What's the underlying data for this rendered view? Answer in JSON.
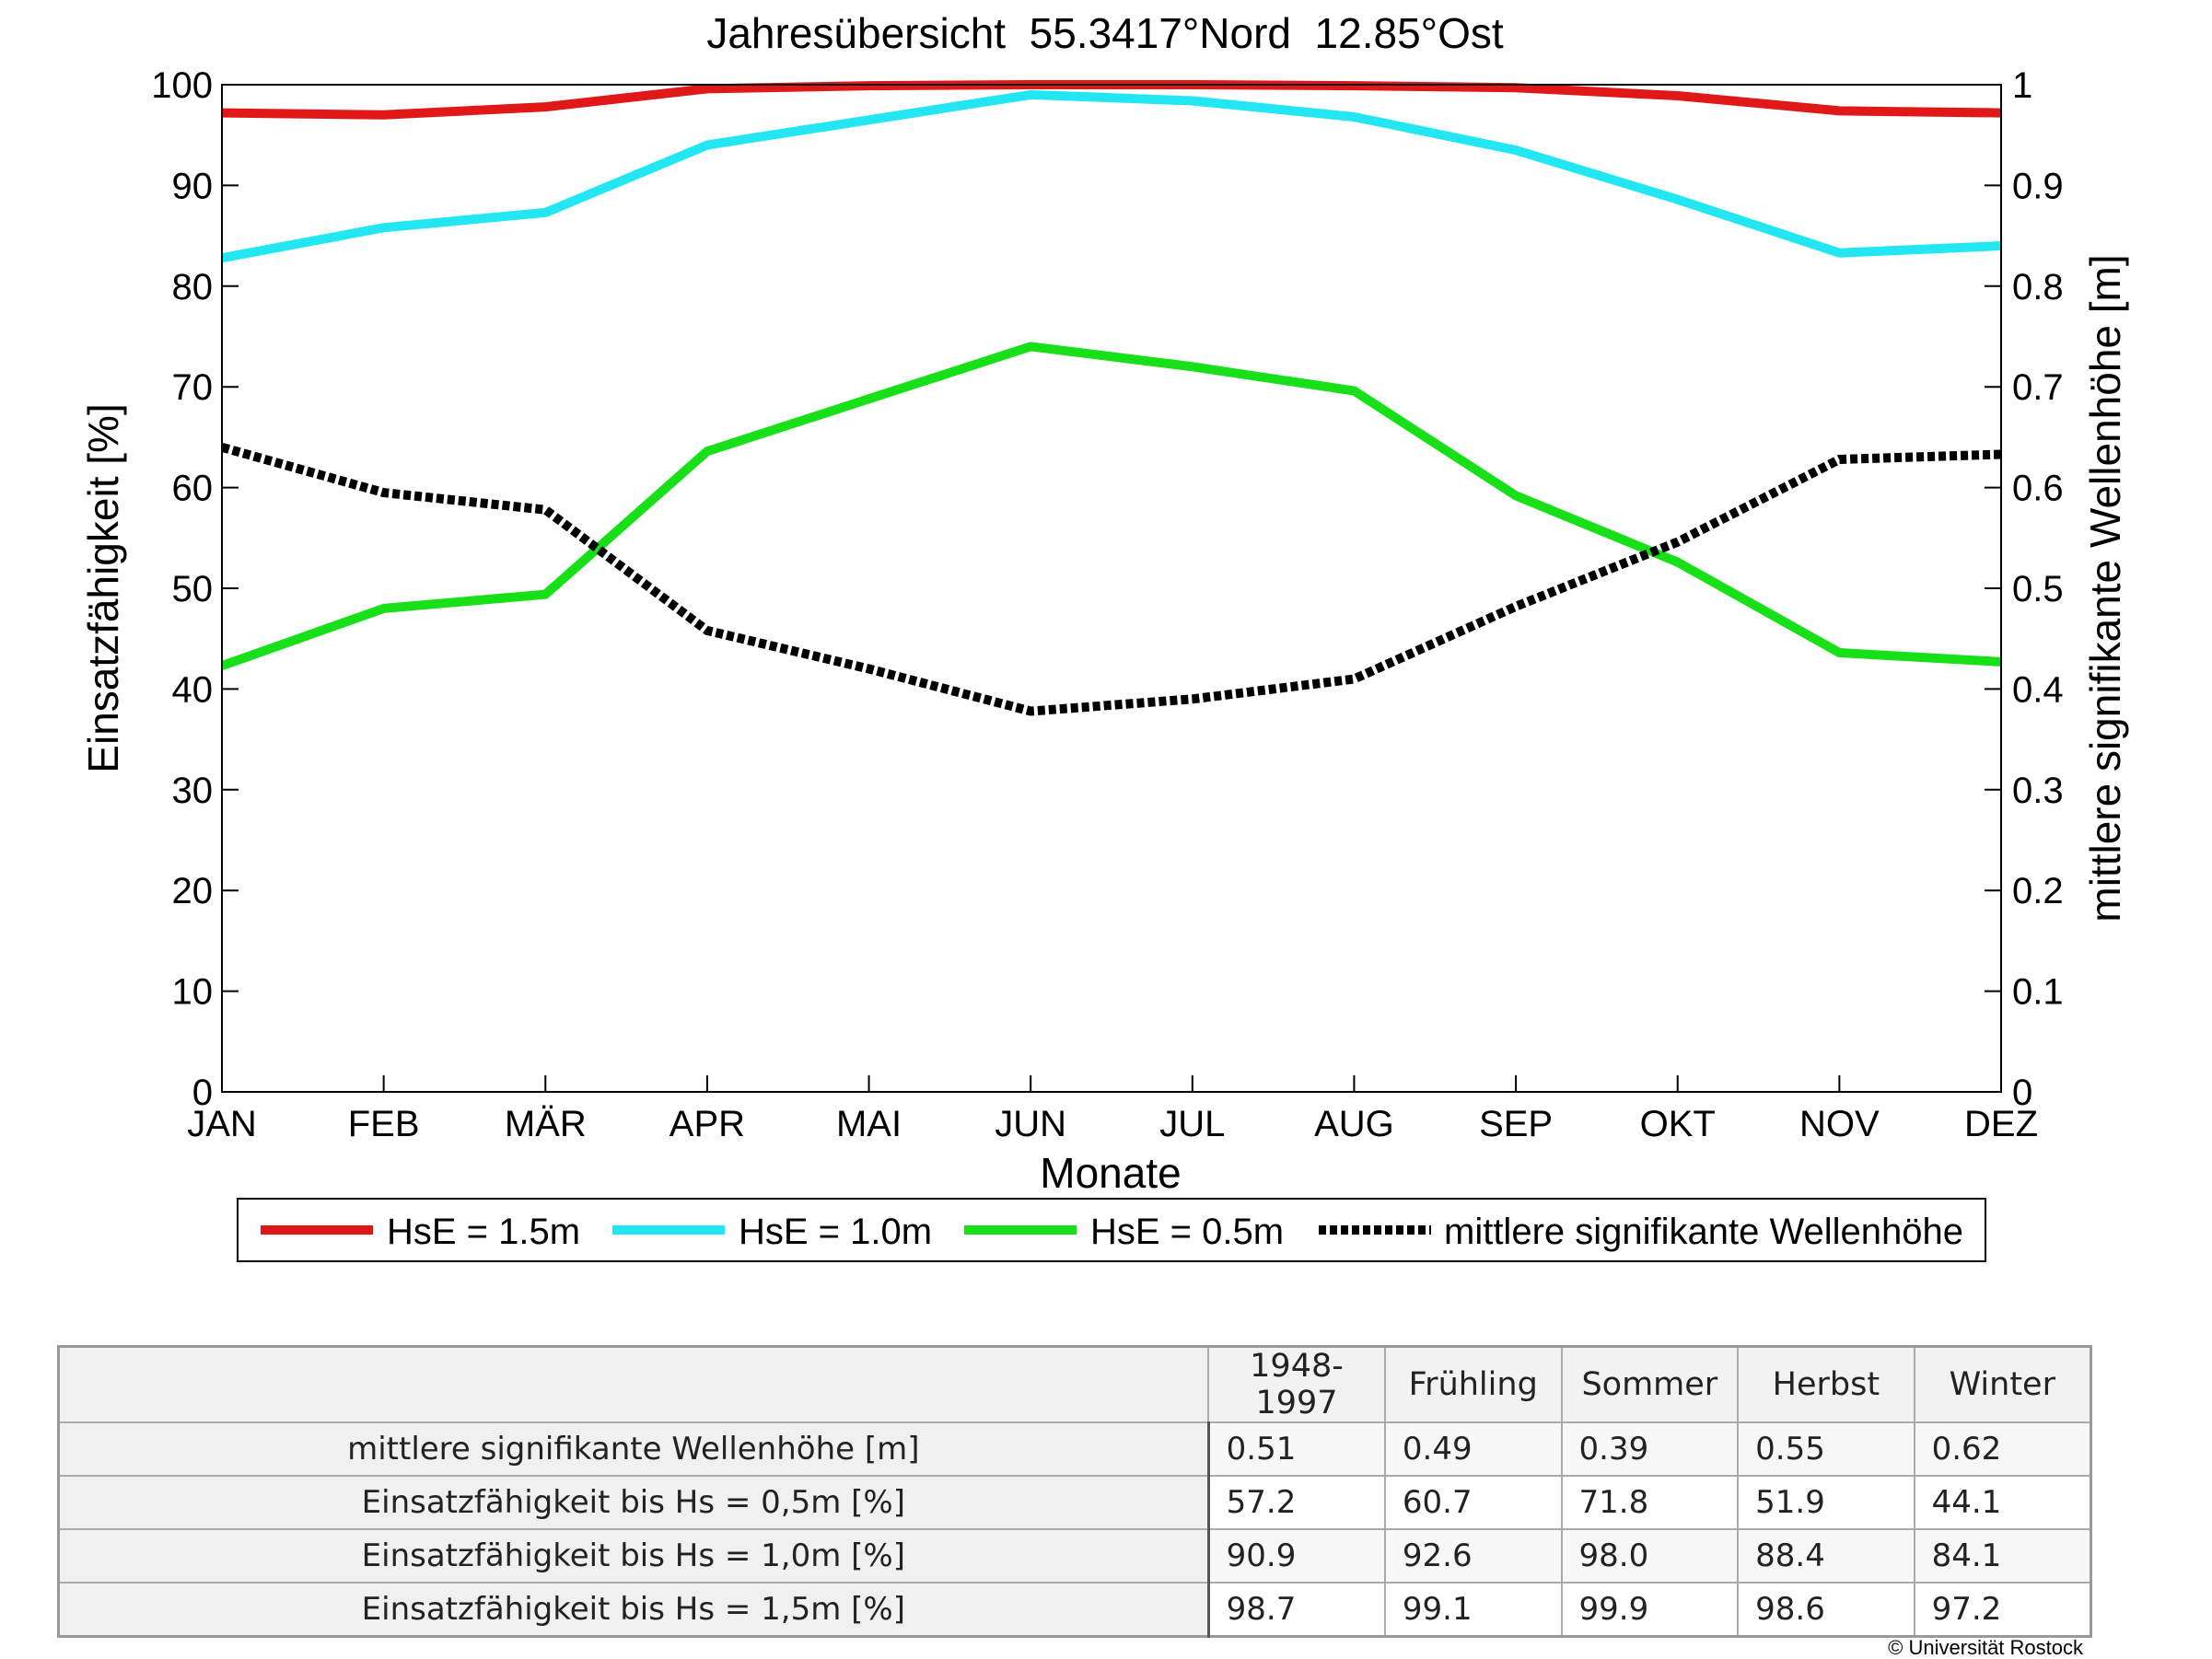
{
  "chart_data": {
    "type": "line",
    "title": "Jahresübersicht  55.3417°Nord  12.85°Ost",
    "xlabel": "Monate",
    "ylabel": "Einsatzfähigkeit [%]",
    "y2label": "mittlere signifikante Wellenhöhe [m]",
    "categories": [
      "JAN",
      "FEB",
      "MÄR",
      "APR",
      "MAI",
      "JUN",
      "JUL",
      "AUG",
      "SEP",
      "OKT",
      "NOV",
      "DEZ"
    ],
    "ylim": [
      0,
      100
    ],
    "yticks": [
      "0",
      "10",
      "20",
      "30",
      "40",
      "50",
      "60",
      "70",
      "80",
      "90",
      "100"
    ],
    "y2lim": [
      0,
      1
    ],
    "y2ticks": [
      "0",
      "0.1",
      "0.2",
      "0.3",
      "0.4",
      "0.5",
      "0.6",
      "0.7",
      "0.8",
      "0.9",
      "1"
    ],
    "grid": false,
    "legend_placement": "bottom",
    "series": [
      {
        "name": "HsE = 1.5m",
        "axis": "left",
        "color": "#e01818",
        "style": "solid",
        "values": [
          97.2,
          97.0,
          97.8,
          99.6,
          99.9,
          100.0,
          100.0,
          99.9,
          99.7,
          98.9,
          97.4,
          97.2
        ]
      },
      {
        "name": "HsE = 1.0m",
        "axis": "left",
        "color": "#22e6f2",
        "style": "solid",
        "values": [
          82.8,
          85.8,
          87.3,
          94.0,
          96.5,
          99.0,
          98.4,
          96.8,
          93.5,
          88.6,
          83.3,
          84.0
        ]
      },
      {
        "name": "HsE = 0.5m",
        "axis": "left",
        "color": "#18e018",
        "style": "solid",
        "values": [
          42.3,
          48.0,
          49.4,
          63.6,
          68.8,
          74.0,
          72.0,
          69.6,
          59.2,
          52.6,
          43.6,
          42.7
        ]
      },
      {
        "name": "mittlere signifikante Wellenhöhe",
        "axis": "right",
        "color": "#000000",
        "style": "dotted",
        "values": [
          0.64,
          0.595,
          0.578,
          0.458,
          0.42,
          0.378,
          0.39,
          0.41,
          0.482,
          0.546,
          0.628,
          0.633
        ]
      }
    ]
  },
  "table": {
    "columns": [
      "1948-1997",
      "Frühling",
      "Sommer",
      "Herbst",
      "Winter"
    ],
    "rows": [
      {
        "label": "mittlere signifikante Wellenhöhe [m]",
        "values": [
          "0.51",
          "0.49",
          "0.39",
          "0.55",
          "0.62"
        ]
      },
      {
        "label": "Einsatzfähigkeit bis Hs = 0,5m [%]",
        "values": [
          "57.2",
          "60.7",
          "71.8",
          "51.9",
          "44.1"
        ]
      },
      {
        "label": "Einsatzfähigkeit bis Hs = 1,0m [%]",
        "values": [
          "90.9",
          "92.6",
          "98.0",
          "88.4",
          "84.1"
        ]
      },
      {
        "label": "Einsatzfähigkeit bis Hs = 1,5m [%]",
        "values": [
          "98.7",
          "99.1",
          "99.9",
          "98.6",
          "97.2"
        ]
      }
    ]
  },
  "copyright": "© Universität Rostock"
}
